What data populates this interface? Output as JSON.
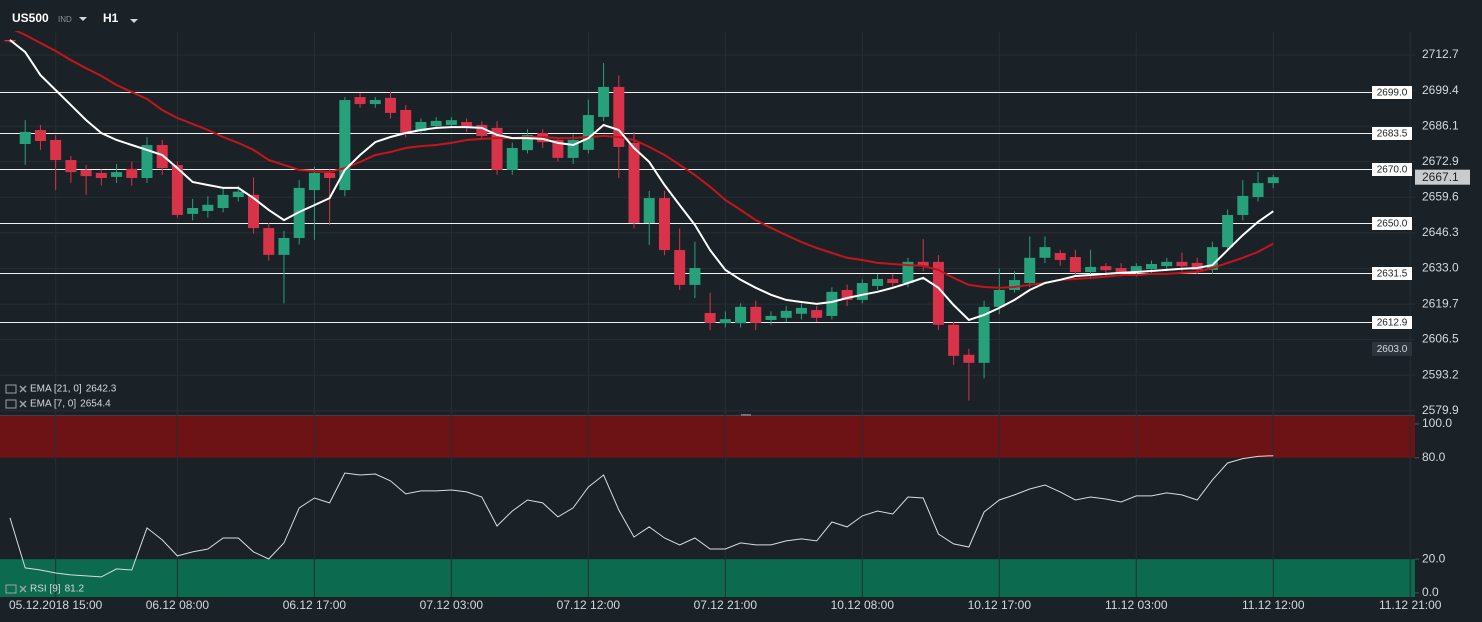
{
  "header": {
    "symbol": "US500",
    "instrument_type": "IND",
    "timeframe": "H1"
  },
  "chart_data": [
    {
      "type": "candlestick",
      "categories": [
        null,
        null,
        null,
        "05.12.2018 15:00",
        null,
        null,
        null,
        null,
        null,
        null,
        null,
        "06.12 08:00",
        null,
        null,
        null,
        null,
        null,
        null,
        null,
        null,
        "06.12 17:00",
        null,
        null,
        null,
        null,
        null,
        null,
        null,
        null,
        "07.12 03:00",
        null,
        null,
        null,
        null,
        null,
        null,
        null,
        null,
        "07.12 12:00",
        null,
        null,
        null,
        null,
        null,
        null,
        null,
        null,
        "07.12 21:00",
        null,
        null,
        null,
        null,
        null,
        null,
        null,
        null,
        "10.12 08:00",
        null,
        null,
        null,
        null,
        null,
        null,
        null,
        null,
        "10.12 17:00",
        null,
        null,
        null,
        null,
        null,
        null,
        null,
        null,
        "11.12 03:00",
        null,
        null,
        null,
        null,
        null,
        null,
        null,
        null,
        "11.12 12:00",
        null,
        null,
        null,
        null,
        null,
        null,
        null,
        null,
        "11.12 21:00"
      ],
      "open": [
        2718.3,
        2679.5,
        2684.7,
        2681.0,
        2673.5,
        2669.8,
        2668.7,
        2667.2,
        2670.2,
        2666.8,
        2679.1,
        2671.6,
        2653.4,
        2654.5,
        2655.6,
        2659.7,
        2660.5,
        2648.1,
        2638.1,
        2644.4,
        2662.3,
        2668.7,
        2662.3,
        2697.0,
        2694.4,
        2696.7,
        2692.2,
        2684.3,
        2686.2,
        2686.6,
        2687.7,
        2686.6,
        2685.5,
        2669.8,
        2677.2,
        2683.6,
        2681.0,
        2674.3,
        2677.3,
        2689.6,
        2700.8,
        2679.9,
        2650.0,
        2659.3,
        2639.9,
        2626.9,
        2616.4,
        2612.6,
        2612.6,
        2618.7,
        2613.8,
        2614.6,
        2616.1,
        2617.5,
        2615.3,
        2625.0,
        2621.3,
        2626.5,
        2629.1,
        2627.6,
        2635.5,
        2635.5,
        2612.0,
        2600.8,
        2597.8,
        2618.7,
        2625.0,
        2627.6,
        2637.0,
        2638.8,
        2637.3,
        2631.7,
        2633.9,
        2633.2,
        2631.9,
        2632.8,
        2633.9,
        2635.5,
        2635.1,
        2632.5,
        2641.0,
        2653.0,
        2659.7,
        2664.9,
        null,
        null,
        null,
        null,
        null,
        null,
        null,
        null,
        null
      ],
      "high": [
        2718.6,
        2688.4,
        2686.6,
        2682.8,
        2675,
        2671.7,
        2670,
        2672,
        2673,
        2682,
        2681,
        2673,
        2659,
        2660,
        2663,
        2664,
        2667,
        2650,
        2647,
        2666,
        2671,
        2670,
        2697,
        2698.5,
        2697,
        2699,
        2694,
        2689,
        2689.5,
        2689.5,
        2689,
        2688,
        2688,
        2680,
        2685,
        2685,
        2682,
        2683,
        2696,
        2709.7,
        2705,
        2684,
        2662,
        2662,
        2648,
        2643,
        2624,
        2617,
        2620,
        2621,
        2617,
        2619,
        2620,
        2619,
        2626,
        2627,
        2629,
        2631,
        2631,
        2637,
        2644,
        2638,
        2613,
        2603,
        2621,
        2633,
        2632,
        2645,
        2645,
        2640,
        2640,
        2640,
        2635,
        2635,
        2635,
        2636,
        2637,
        2639,
        2637,
        2643,
        2655,
        2666,
        2669,
        2668,
        null,
        null,
        null,
        null,
        null,
        null,
        null,
        null,
        null
      ],
      "low": [
        2717.3,
        2671.7,
        2677.3,
        2662.3,
        2665,
        2660.5,
        2664,
        2665,
        2664,
        2665,
        2668,
        2652,
        2651,
        2652,
        2654,
        2658,
        2646,
        2636,
        2620,
        2642,
        2643.7,
        2649.3,
        2660,
        2693,
        2693,
        2689,
        2682,
        2683,
        2685,
        2685.5,
        2684,
        2681,
        2668,
        2668,
        2676,
        2678,
        2673,
        2672,
        2676,
        2688,
        2666.8,
        2648,
        2641.8,
        2638,
        2625,
        2622,
        2610,
        2611,
        2611,
        2610,
        2612,
        2613,
        2614,
        2613,
        2614,
        2619,
        2620,
        2625,
        2626,
        2626,
        2632,
        2610,
        2597,
        2583.7,
        2592,
        2616,
        2624,
        2626,
        2635,
        2634,
        2630,
        2629,
        2630,
        2630,
        2630,
        2631,
        2632,
        2632,
        2631,
        2631,
        2640,
        2651,
        2658,
        2663,
        null,
        null,
        null,
        null,
        null,
        null,
        null,
        null,
        null
      ],
      "close": [
        2717.8,
        2684.0,
        2680.6,
        2673.5,
        2669.0,
        2667.5,
        2666.8,
        2669.0,
        2666.8,
        2679.1,
        2670.5,
        2653.0,
        2655.6,
        2656.8,
        2660.5,
        2661.7,
        2648.1,
        2638.1,
        2644.4,
        2663.1,
        2668.7,
        2666.8,
        2695.9,
        2694.4,
        2695.9,
        2691.1,
        2683.6,
        2687.7,
        2688.1,
        2688.4,
        2685.5,
        2682.5,
        2669.8,
        2678.0,
        2682.8,
        2680.2,
        2674.3,
        2681.0,
        2690.3,
        2700.8,
        2678.4,
        2650.0,
        2659.3,
        2639.9,
        2626.9,
        2633.2,
        2612.7,
        2614.1,
        2618.7,
        2612.7,
        2615.3,
        2617.2,
        2618.3,
        2614.6,
        2624.3,
        2621.3,
        2627.6,
        2629.1,
        2627.6,
        2635.5,
        2634.0,
        2612.0,
        2600.4,
        2597.8,
        2618.7,
        2625.0,
        2628.7,
        2637.0,
        2641.0,
        2636.2,
        2631.7,
        2633.6,
        2632.4,
        2631.7,
        2633.9,
        2634.7,
        2635.5,
        2633.9,
        2632.5,
        2641.0,
        2653.0,
        2660.1,
        2664.9,
        2667.1,
        null,
        null,
        null,
        null,
        null,
        null,
        null,
        null,
        null
      ],
      "up_color": "#26a17b",
      "down_color": "#d9334a",
      "series": [
        {
          "name": "EMA [21, 0]",
          "color": "#c4151c",
          "values": [
            2722.8,
            2720.2,
            2717.2,
            2714.2,
            2710.8,
            2707.8,
            2704.9,
            2701.5,
            2698.9,
            2696.3,
            2692.2,
            2689.2,
            2687.0,
            2684.7,
            2682.1,
            2679.9,
            2677.3,
            2673.5,
            2671.7,
            2669.8,
            2669.4,
            2669.0,
            2670.5,
            2672.8,
            2675.4,
            2676.5,
            2678.0,
            2678.7,
            2679.1,
            2679.9,
            2681.0,
            2681.4,
            2681.7,
            2681.7,
            2682.1,
            2682.1,
            2681.7,
            2681.7,
            2682.1,
            2682.5,
            2682.1,
            2681.0,
            2678.4,
            2675.4,
            2671.7,
            2667.9,
            2663.5,
            2658.6,
            2654.9,
            2651.1,
            2648.2,
            2645.5,
            2642.9,
            2640.7,
            2638.8,
            2637.0,
            2636.2,
            2635.1,
            2634.7,
            2634.3,
            2634.0,
            2632.5,
            2629.5,
            2626.9,
            2626.1,
            2625.8,
            2626.1,
            2626.9,
            2627.6,
            2628.8,
            2629.1,
            2629.5,
            2629.9,
            2630.6,
            2630.6,
            2631.0,
            2631.0,
            2631.4,
            2631.7,
            2633.2,
            2635.1,
            2637.0,
            2639.2,
            2642.3,
            null,
            null,
            null,
            null,
            null,
            null,
            null,
            null,
            null
          ]
        },
        {
          "name": "EMA [7, 0]",
          "color": "#ffffff",
          "values": [
            2718.3,
            2713.8,
            2705.2,
            2699.6,
            2694.0,
            2688.4,
            2683.6,
            2681.0,
            2679.1,
            2677.3,
            2675.4,
            2670.5,
            2665.3,
            2664.2,
            2663.1,
            2663.1,
            2659.3,
            2654.9,
            2651.1,
            2654.1,
            2656.7,
            2659.3,
            2669.8,
            2675.4,
            2680.2,
            2682.1,
            2683.6,
            2684.7,
            2685.5,
            2685.8,
            2685.8,
            2685.5,
            2682.9,
            2681.7,
            2681.7,
            2681.4,
            2679.9,
            2679.1,
            2681.7,
            2686.6,
            2684.7,
            2678.0,
            2672.8,
            2664.2,
            2656.7,
            2649.3,
            2639.9,
            2632.5,
            2628.8,
            2625.8,
            2623.2,
            2621.3,
            2620.5,
            2619.8,
            2620.5,
            2622.0,
            2623.2,
            2624.3,
            2625.8,
            2627.6,
            2629.5,
            2625.8,
            2619.4,
            2613.8,
            2615.7,
            2618.3,
            2621.3,
            2625.0,
            2627.6,
            2628.8,
            2630.2,
            2630.6,
            2631.0,
            2631.4,
            2631.7,
            2632.1,
            2632.5,
            2632.9,
            2633.2,
            2634.3,
            2639.9,
            2645.5,
            2650.4,
            2654.4,
            null,
            null,
            null,
            null,
            null,
            null,
            null,
            null,
            null
          ]
        }
      ],
      "ylim": [
        2578.7,
        2721.3
      ],
      "yticks": [
        2712.7,
        2699.4,
        2686.1,
        2672.9,
        2659.6,
        2646.3,
        {
          "value": 2633,
          "label": "2633.0"
        },
        2619.7,
        2606.5,
        2593.2,
        2579.9
      ],
      "grid": true,
      "levels": [
        {
          "value": 2699,
          "label": "2699.0"
        },
        2683.5,
        {
          "value": 2670,
          "label": "2670.0"
        },
        {
          "value": 2650,
          "label": "2650.0"
        },
        2631.5,
        2612.9
      ],
      "marker": {
        "value": 2603,
        "label": "2603.0"
      }
    },
    {
      "type": "line",
      "series": [
        {
          "name": "RSI [9]",
          "color": "#d8dcdf",
          "values": [
            44.4,
            14.8,
            13.6,
            11.8,
            10.7,
            10.1,
            9.5,
            14.2,
            13.6,
            38.5,
            31.4,
            21.9,
            24.3,
            26.0,
            32.5,
            32.5,
            24.3,
            20.1,
            29.6,
            50.3,
            56.2,
            53.3,
            71.0,
            69.8,
            70.4,
            66.3,
            58.6,
            60.4,
            60.4,
            60.9,
            59.8,
            56.8,
            39.6,
            48.5,
            55.0,
            53.3,
            45.0,
            50.3,
            62.7,
            69.8,
            49.1,
            33.1,
            39.1,
            32.5,
            28.4,
            32.5,
            26.0,
            26.0,
            29.6,
            28.4,
            28.4,
            30.8,
            32.0,
            30.8,
            42.0,
            39.1,
            45.6,
            48.5,
            46.7,
            56.8,
            56.2,
            34.9,
            29.0,
            27.2,
            47.9,
            55.0,
            58.0,
            61.5,
            63.9,
            59.8,
            55.0,
            56.8,
            55.6,
            53.8,
            57.4,
            57.4,
            59.2,
            58.0,
            55.0,
            66.9,
            76.9,
            79.5,
            80.8,
            81.2,
            null,
            null,
            null,
            null,
            null,
            null,
            null,
            null,
            null
          ]
        }
      ],
      "ylim": [
        -2.4,
        104.7
      ],
      "yticks": [
        {
          "value": 100,
          "label": "100.0"
        },
        {
          "value": 80,
          "label": "80.0"
        },
        {
          "value": 20,
          "label": "20.0"
        },
        {
          "value": 0,
          "label": "0.0"
        }
      ],
      "overbought": 80,
      "oversold": 20,
      "overbought_color": "#6e1315",
      "oversold_color": "#0c6a4e"
    }
  ]
}
